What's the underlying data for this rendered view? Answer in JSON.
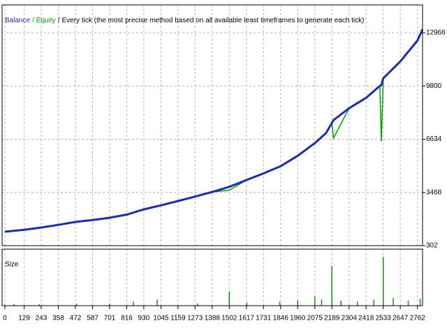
{
  "chart_data": {
    "type": "line",
    "subtitle": "Every tick (the most precise method based on all available least timeframes to generate each tick)",
    "separator": "/",
    "x": [
      0,
      129,
      243,
      358,
      472,
      587,
      701,
      816,
      930,
      1045,
      1159,
      1273,
      1388,
      1502,
      1617,
      1731,
      1846,
      1960,
      2075,
      2150,
      2189,
      2200,
      2304,
      2418,
      2510,
      2520,
      2533,
      2647,
      2762,
      2796
    ],
    "series": [
      {
        "name": "Balance",
        "color": "#1c2bb0",
        "values": [
          1132,
          1250,
          1381,
          1540,
          1713,
          1830,
          1962,
          2150,
          2460,
          2700,
          2958,
          3220,
          3498,
          3800,
          4203,
          4600,
          5033,
          5650,
          6403,
          7000,
          7600,
          7772,
          8478,
          9100,
          9800,
          9850,
          10262,
          11258,
          12503,
          13167
        ]
      },
      {
        "name": "Equity",
        "color": "#00a000",
        "values": [
          1132,
          1250,
          1381,
          1540,
          1713,
          1830,
          1962,
          2150,
          2460,
          2700,
          2958,
          3220,
          3498,
          3600,
          4203,
          4600,
          5033,
          5650,
          6403,
          7000,
          7600,
          6700,
          8478,
          9100,
          9800,
          6500,
          10262,
          11258,
          12503,
          13167
        ]
      }
    ],
    "xlim": [
      0,
      2796
    ],
    "xticks": [
      0,
      129,
      243,
      358,
      472,
      587,
      701,
      816,
      930,
      1045,
      1159,
      1273,
      1388,
      1502,
      1617,
      1731,
      1846,
      1960,
      2075,
      2189,
      2304,
      2418,
      2533,
      2647,
      2762
    ],
    "ylim": [
      302,
      14626
    ],
    "yticks": [
      302,
      3468,
      6634,
      9800,
      12966
    ],
    "grid": true,
    "size_panel": {
      "label": "Size",
      "color": "#00a000",
      "ylim": [
        0,
        100
      ],
      "x": [
        60,
        230,
        480,
        700,
        860,
        1020,
        1290,
        1502,
        1620,
        1840,
        1960,
        2075,
        2120,
        2189,
        2250,
        2360,
        2470,
        2533,
        2600,
        2700,
        2780
      ],
      "values": [
        3,
        3,
        4,
        4,
        8,
        12,
        4,
        28,
        6,
        8,
        10,
        18,
        12,
        78,
        10,
        8,
        12,
        96,
        15,
        10,
        14
      ]
    }
  }
}
